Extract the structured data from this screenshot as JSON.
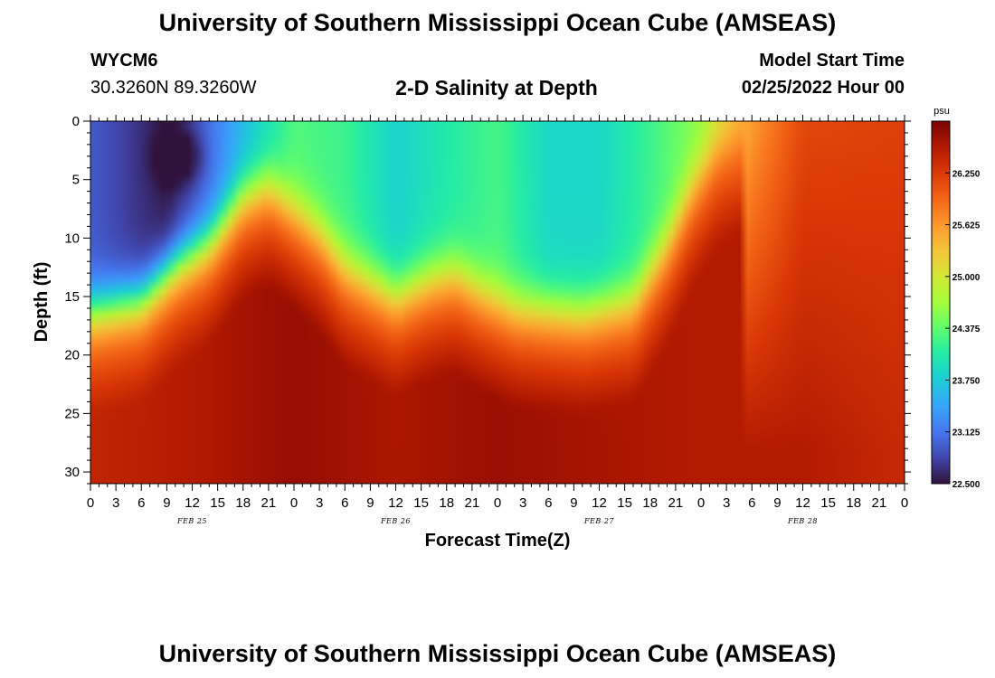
{
  "header": {
    "title": "University of Southern Mississippi Ocean Cube (AMSEAS)",
    "station": "WYCM6",
    "coords": "30.3260N  89.3260W",
    "model_start_label": "Model Start Time",
    "model_start_value": "02/25/2022 Hour 00"
  },
  "footer": {
    "title": "University of Southern Mississippi Ocean Cube (AMSEAS)"
  },
  "chart_data": {
    "type": "heatmap",
    "title": "2-D Salinity at Depth",
    "xlabel": "Forecast Time(Z)",
    "ylabel": "Depth (ft)",
    "xlim": [
      0,
      96
    ],
    "ylim": [
      0,
      31
    ],
    "x_ticks": [
      0,
      3,
      6,
      9,
      12,
      15,
      18,
      21,
      24,
      27,
      30,
      33,
      36,
      39,
      42,
      45,
      48,
      51,
      54,
      57,
      60,
      63,
      66,
      69,
      72,
      75,
      78,
      81,
      84,
      87,
      90,
      93,
      96
    ],
    "x_tick_labels": [
      "0",
      "3",
      "6",
      "9",
      "12",
      "15",
      "18",
      "21",
      "0",
      "3",
      "6",
      "9",
      "12",
      "15",
      "18",
      "21",
      "0",
      "3",
      "6",
      "9",
      "12",
      "15",
      "18",
      "21",
      "0",
      "3",
      "6",
      "9",
      "12",
      "15",
      "18",
      "21",
      "0"
    ],
    "day_labels": [
      {
        "text": "FEB 25",
        "x": 12
      },
      {
        "text": "FEB 26",
        "x": 36
      },
      {
        "text": "FEB 27",
        "x": 60
      },
      {
        "text": "FEB 28",
        "x": 84
      }
    ],
    "y_ticks": [
      0,
      5,
      10,
      15,
      20,
      25,
      30
    ],
    "colorbar": {
      "unit": "psu",
      "range": [
        22.5,
        26.875
      ],
      "ticks": [
        22.5,
        23.125,
        23.75,
        24.375,
        25.0,
        25.625,
        26.25
      ],
      "tick_labels": [
        "22.500",
        "23.125",
        "23.750",
        "24.375",
        "25.000",
        "25.625",
        "26.250"
      ]
    },
    "field": {
      "description": "Salinity (psu): halocline depth over forecast hours; fresher water above, saltier below",
      "halocline_depth_ft": [
        [
          0,
          16
        ],
        [
          6,
          15
        ],
        [
          10,
          12
        ],
        [
          14,
          10
        ],
        [
          18,
          6
        ],
        [
          21,
          5
        ],
        [
          24,
          7
        ],
        [
          27,
          9
        ],
        [
          30,
          12
        ],
        [
          36,
          14.5
        ],
        [
          40,
          13
        ],
        [
          43,
          12.5
        ],
        [
          46,
          14
        ],
        [
          50,
          15.5
        ],
        [
          58,
          16
        ],
        [
          64,
          15
        ],
        [
          68,
          10
        ],
        [
          71,
          5
        ],
        [
          74,
          1.5
        ],
        [
          78,
          0
        ],
        [
          96,
          0
        ]
      ],
      "surface_salinity": [
        [
          0,
          22.95
        ],
        [
          9,
          22.55
        ],
        [
          12,
          22.85
        ],
        [
          18,
          23.6
        ],
        [
          24,
          24.3
        ],
        [
          30,
          24.2
        ],
        [
          36,
          23.8
        ],
        [
          42,
          24.05
        ],
        [
          48,
          24.25
        ],
        [
          54,
          23.85
        ],
        [
          60,
          23.85
        ],
        [
          66,
          24.2
        ],
        [
          72,
          24.6
        ],
        [
          78,
          25.6
        ],
        [
          84,
          26.15
        ],
        [
          96,
          26.2
        ]
      ],
      "deep_salinity": [
        [
          0,
          26.45
        ],
        [
          12,
          26.55
        ],
        [
          24,
          26.72
        ],
        [
          36,
          26.6
        ],
        [
          48,
          26.7
        ],
        [
          60,
          26.62
        ],
        [
          72,
          26.55
        ],
        [
          84,
          26.55
        ],
        [
          96,
          26.4
        ]
      ],
      "fresh_minimum": {
        "x": 10.5,
        "depth": 3.0,
        "value": 22.5
      }
    }
  }
}
